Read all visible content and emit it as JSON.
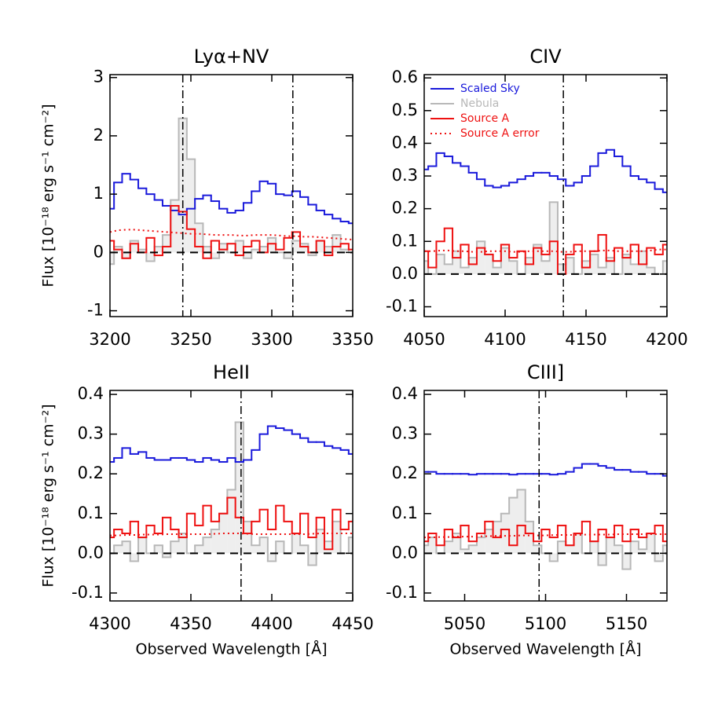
{
  "chart_data": [
    {
      "type": "line",
      "title": "Lyα+NV",
      "ylabel": "Flux [10⁻¹⁸ erg s⁻¹ cm⁻²]",
      "xlim": [
        3200,
        3350
      ],
      "xticks": [
        3200,
        3250,
        3300,
        3350
      ],
      "ylim": [
        -1.1,
        3.05
      ],
      "yticks": [
        -1,
        0,
        1,
        2,
        3
      ],
      "vlines": [
        3245,
        3313
      ],
      "hlines": [
        0
      ],
      "x": [
        3200,
        3205,
        3210,
        3215,
        3220,
        3225,
        3230,
        3235,
        3240,
        3245,
        3250,
        3255,
        3260,
        3265,
        3270,
        3275,
        3280,
        3285,
        3290,
        3295,
        3300,
        3305,
        3310,
        3315,
        3320,
        3325,
        3330,
        3335,
        3340,
        3345,
        3350
      ],
      "series": [
        {
          "name": "Nebula",
          "color": "#b8b8b8",
          "fill": "#eeeeee",
          "drawstyle": "steps",
          "values": [
            -0.2,
            0.1,
            -0.1,
            0.2,
            0.05,
            -0.15,
            0.1,
            0.3,
            0.9,
            2.3,
            1.6,
            0.5,
            0.1,
            -0.1,
            0.15,
            0.0,
            0.2,
            -0.1,
            0.05,
            0.1,
            0.25,
            0.0,
            -0.1,
            0.2,
            0.15,
            -0.05,
            0.2,
            0.1,
            0.3,
            0.05,
            0.0
          ]
        },
        {
          "name": "Scaled Sky",
          "color": "#1a1adb",
          "drawstyle": "steps",
          "values": [
            0.75,
            1.2,
            1.35,
            1.25,
            1.1,
            1.0,
            0.9,
            0.8,
            0.72,
            0.65,
            0.75,
            0.92,
            0.98,
            0.88,
            0.75,
            0.68,
            0.72,
            0.85,
            1.05,
            1.22,
            1.18,
            1.0,
            0.98,
            1.05,
            0.95,
            0.82,
            0.72,
            0.65,
            0.58,
            0.53,
            0.5
          ]
        },
        {
          "name": "Source A",
          "color": "#ee1111",
          "drawstyle": "steps",
          "values": [
            0.2,
            0.05,
            -0.1,
            0.15,
            0.0,
            0.25,
            -0.05,
            0.1,
            0.8,
            0.7,
            0.4,
            0.1,
            -0.1,
            0.2,
            0.05,
            0.15,
            -0.05,
            0.1,
            0.2,
            0.0,
            0.15,
            0.05,
            0.25,
            0.35,
            0.1,
            0.0,
            0.2,
            -0.05,
            0.1,
            0.15,
            0.05
          ]
        },
        {
          "name": "Source A error",
          "color": "#ee1111",
          "linestyle": "dotted",
          "values": [
            0.35,
            0.38,
            0.39,
            0.39,
            0.38,
            0.37,
            0.36,
            0.35,
            0.34,
            0.33,
            0.32,
            0.32,
            0.31,
            0.3,
            0.3,
            0.3,
            0.29,
            0.29,
            0.3,
            0.3,
            0.3,
            0.29,
            0.28,
            0.28,
            0.27,
            0.27,
            0.26,
            0.25,
            0.24,
            0.23,
            0.22
          ]
        }
      ]
    },
    {
      "type": "line",
      "title": "CIV",
      "legend": "upper left",
      "xlim": [
        4050,
        4200
      ],
      "xticks": [
        4050,
        4100,
        4150,
        4200
      ],
      "ylim": [
        -0.13,
        0.61
      ],
      "yticks": [
        -0.1,
        {
          "value": 0,
          "label": "0.0"
        },
        0.1,
        0.2,
        0.3,
        0.4,
        0.5,
        0.6
      ],
      "vlines": [
        4136
      ],
      "hlines": [
        0
      ],
      "x": [
        4050,
        4055,
        4060,
        4065,
        4070,
        4075,
        4080,
        4085,
        4090,
        4095,
        4100,
        4105,
        4110,
        4115,
        4120,
        4125,
        4130,
        4135,
        4140,
        4145,
        4150,
        4155,
        4160,
        4165,
        4170,
        4175,
        4180,
        4185,
        4190,
        4195,
        4200
      ],
      "series": [
        {
          "name": "Nebula",
          "color": "#b8b8b8",
          "fill": "#eeeeee",
          "drawstyle": "steps",
          "values": [
            0.04,
            0.0,
            0.06,
            0.03,
            0.07,
            0.02,
            0.05,
            0.1,
            0.06,
            0.02,
            0.08,
            0.04,
            0.0,
            0.05,
            0.09,
            0.04,
            0.22,
            0.03,
            0.05,
            0.0,
            0.04,
            0.06,
            0.02,
            0.05,
            0.0,
            0.06,
            0.03,
            0.07,
            0.02,
            0.0,
            0.04
          ]
        },
        {
          "name": "Scaled Sky",
          "color": "#1a1adb",
          "drawstyle": "steps",
          "values": [
            0.32,
            0.33,
            0.37,
            0.36,
            0.34,
            0.33,
            0.31,
            0.29,
            0.27,
            0.265,
            0.27,
            0.28,
            0.29,
            0.3,
            0.31,
            0.31,
            0.3,
            0.29,
            0.27,
            0.28,
            0.3,
            0.33,
            0.37,
            0.38,
            0.36,
            0.33,
            0.3,
            0.29,
            0.28,
            0.26,
            0.25
          ]
        },
        {
          "name": "Source A",
          "color": "#ee1111",
          "drawstyle": "steps",
          "values": [
            0.07,
            0.02,
            0.1,
            0.14,
            0.05,
            0.09,
            0.03,
            0.08,
            0.06,
            0.04,
            0.09,
            0.05,
            0.07,
            0.03,
            0.08,
            0.06,
            0.1,
            0.0,
            0.06,
            0.09,
            0.02,
            0.07,
            0.12,
            0.04,
            0.08,
            0.05,
            0.09,
            0.03,
            0.08,
            0.06,
            0.09
          ]
        },
        {
          "name": "Source A error",
          "color": "#ee1111",
          "linestyle": "dotted",
          "values": [
            0.07,
            0.07,
            0.072,
            0.072,
            0.07,
            0.07,
            0.068,
            0.068,
            0.07,
            0.07,
            0.07,
            0.068,
            0.068,
            0.07,
            0.07,
            0.07,
            0.07,
            0.068,
            0.068,
            0.07,
            0.07,
            0.07,
            0.072,
            0.072,
            0.07,
            0.07,
            0.07,
            0.07,
            0.072,
            0.075,
            0.075
          ]
        }
      ]
    },
    {
      "type": "line",
      "title": "HeII",
      "ylabel": "Flux [10⁻¹⁸ erg s⁻¹ cm⁻²]",
      "xlabel": "Observed Wavelength [Å]",
      "xlim": [
        4300,
        4450
      ],
      "xticks": [
        4300,
        4350,
        4400,
        4450
      ],
      "ylim": [
        -0.12,
        0.41
      ],
      "yticks": [
        -0.1,
        {
          "value": 0,
          "label": "0.0"
        },
        0.1,
        0.2,
        0.3,
        0.4
      ],
      "vlines": [
        4381
      ],
      "hlines": [
        0
      ],
      "x": [
        4300,
        4305,
        4310,
        4315,
        4320,
        4325,
        4330,
        4335,
        4340,
        4345,
        4350,
        4355,
        4360,
        4365,
        4370,
        4375,
        4380,
        4385,
        4390,
        4395,
        4400,
        4405,
        4410,
        4415,
        4420,
        4425,
        4430,
        4435,
        4440,
        4445,
        4450
      ],
      "series": [
        {
          "name": "Nebula",
          "color": "#b8b8b8",
          "fill": "#eeeeee",
          "drawstyle": "steps",
          "values": [
            0.0,
            0.02,
            0.03,
            -0.02,
            0.04,
            0.0,
            0.02,
            -0.01,
            0.03,
            0.05,
            0.0,
            0.02,
            0.04,
            0.06,
            0.1,
            0.16,
            0.33,
            0.08,
            0.02,
            0.04,
            -0.02,
            0.03,
            0.0,
            0.05,
            0.02,
            -0.03,
            0.06,
            0.03,
            0.08,
            0.0,
            0.04
          ]
        },
        {
          "name": "Scaled Sky",
          "color": "#1a1adb",
          "drawstyle": "steps",
          "values": [
            0.23,
            0.24,
            0.265,
            0.25,
            0.255,
            0.24,
            0.235,
            0.235,
            0.24,
            0.24,
            0.235,
            0.23,
            0.24,
            0.235,
            0.23,
            0.24,
            0.23,
            0.235,
            0.26,
            0.3,
            0.32,
            0.315,
            0.31,
            0.3,
            0.29,
            0.28,
            0.28,
            0.27,
            0.265,
            0.26,
            0.25
          ]
        },
        {
          "name": "Source A",
          "color": "#ee1111",
          "drawstyle": "steps",
          "values": [
            0.04,
            0.06,
            0.05,
            0.08,
            0.04,
            0.07,
            0.05,
            0.09,
            0.06,
            0.04,
            0.1,
            0.07,
            0.12,
            0.08,
            0.1,
            0.14,
            0.09,
            0.05,
            0.08,
            0.11,
            0.06,
            0.12,
            0.08,
            0.05,
            0.1,
            0.04,
            0.09,
            0.01,
            0.11,
            0.06,
            0.08
          ]
        },
        {
          "name": "Source A error",
          "color": "#ee1111",
          "linestyle": "dotted",
          "values": [
            0.045,
            0.045,
            0.046,
            0.046,
            0.047,
            0.047,
            0.047,
            0.048,
            0.048,
            0.048,
            0.048,
            0.048,
            0.048,
            0.049,
            0.05,
            0.05,
            0.05,
            0.049,
            0.048,
            0.048,
            0.048,
            0.048,
            0.048,
            0.048,
            0.048,
            0.049,
            0.05,
            0.05,
            0.05,
            0.05,
            0.05
          ]
        }
      ]
    },
    {
      "type": "line",
      "title": "CIII]",
      "xlabel": "Observed Wavelength [Å]",
      "xlim": [
        5025,
        5175
      ],
      "xticks": [
        5050,
        5100,
        5150
      ],
      "ylim": [
        -0.12,
        0.41
      ],
      "yticks": [
        -0.1,
        {
          "value": 0,
          "label": "0.0"
        },
        0.1,
        0.2,
        0.3,
        0.4
      ],
      "vlines": [
        5096
      ],
      "hlines": [
        0
      ],
      "x": [
        5025,
        5030,
        5035,
        5040,
        5045,
        5050,
        5055,
        5060,
        5065,
        5070,
        5075,
        5080,
        5085,
        5090,
        5095,
        5100,
        5105,
        5110,
        5115,
        5120,
        5125,
        5130,
        5135,
        5140,
        5145,
        5150,
        5155,
        5160,
        5165,
        5170,
        5175
      ],
      "series": [
        {
          "name": "Nebula",
          "color": "#b8b8b8",
          "fill": "#eeeeee",
          "drawstyle": "steps",
          "values": [
            0.02,
            0.04,
            0.0,
            0.03,
            0.05,
            0.01,
            0.02,
            0.04,
            0.06,
            0.08,
            0.1,
            0.14,
            0.16,
            0.08,
            0.02,
            0.0,
            -0.02,
            0.03,
            0.02,
            0.05,
            0.0,
            0.03,
            -0.03,
            0.04,
            0.02,
            -0.04,
            0.03,
            0.01,
            0.05,
            -0.02,
            0.02
          ]
        },
        {
          "name": "Scaled Sky",
          "color": "#1a1adb",
          "drawstyle": "steps",
          "values": [
            0.205,
            0.205,
            0.2,
            0.2,
            0.2,
            0.2,
            0.198,
            0.2,
            0.2,
            0.2,
            0.2,
            0.198,
            0.2,
            0.2,
            0.2,
            0.2,
            0.198,
            0.2,
            0.205,
            0.215,
            0.225,
            0.225,
            0.22,
            0.215,
            0.21,
            0.21,
            0.205,
            0.205,
            0.2,
            0.2,
            0.195
          ]
        },
        {
          "name": "Source A",
          "color": "#ee1111",
          "drawstyle": "steps",
          "values": [
            0.03,
            0.05,
            0.02,
            0.06,
            0.04,
            0.07,
            0.03,
            0.05,
            0.08,
            0.04,
            0.06,
            0.02,
            0.07,
            0.05,
            0.03,
            0.06,
            0.04,
            0.07,
            0.02,
            0.05,
            0.08,
            0.03,
            0.06,
            0.04,
            0.07,
            0.03,
            0.06,
            0.04,
            0.05,
            0.07,
            0.03
          ]
        },
        {
          "name": "Source A error",
          "color": "#ee1111",
          "linestyle": "dotted",
          "values": [
            0.04,
            0.04,
            0.041,
            0.041,
            0.042,
            0.042,
            0.042,
            0.043,
            0.043,
            0.044,
            0.044,
            0.044,
            0.045,
            0.045,
            0.045,
            0.045,
            0.046,
            0.046,
            0.046,
            0.046,
            0.047,
            0.047,
            0.047,
            0.047,
            0.048,
            0.048,
            0.048,
            0.048,
            0.048,
            0.048,
            0.048
          ]
        }
      ]
    }
  ]
}
